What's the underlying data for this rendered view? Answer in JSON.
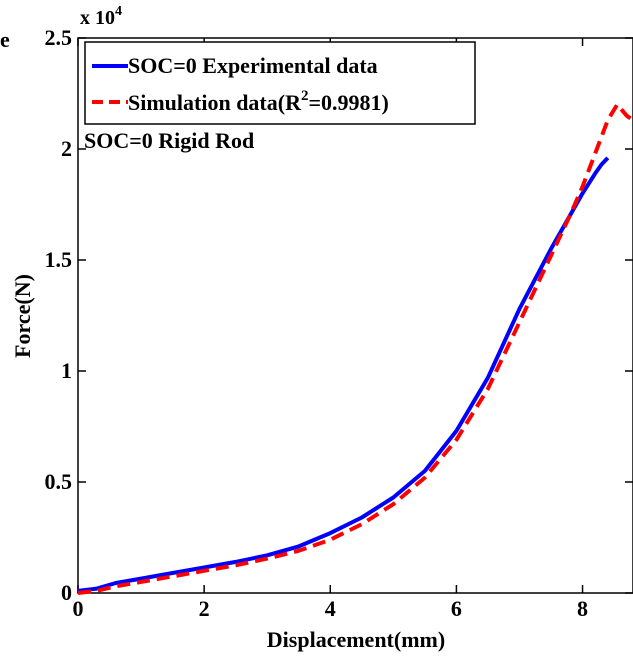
{
  "chart_data": {
    "type": "line",
    "panel_label": "e",
    "xlabel": "Displacement(mm)",
    "ylabel": "Force(N)",
    "xlim": [
      0,
      8.8
    ],
    "ylim": [
      0,
      25000
    ],
    "x_ticks": [
      0,
      2,
      4,
      6,
      8
    ],
    "x_tick_labels": [
      "0",
      "2",
      "4",
      "6",
      "8"
    ],
    "y_ticks": [
      0,
      5000,
      10000,
      15000,
      20000,
      25000
    ],
    "y_tick_labels": [
      "0",
      "0.5",
      "1",
      "1.5",
      "2",
      "2.5"
    ],
    "y_multiplier_base": "x 10",
    "y_multiplier_exp": "4",
    "annotation": "SOC=0 Rigid Rod",
    "legend_position": "top-left",
    "grid": false,
    "series": [
      {
        "name": "SOC=0 Experimental data",
        "color": "#0000ff",
        "style": "solid",
        "x": [
          0,
          0.3,
          0.6,
          1.0,
          1.5,
          2.0,
          2.5,
          3.0,
          3.5,
          4.0,
          4.5,
          5.0,
          5.5,
          6.0,
          6.5,
          7.0,
          7.5,
          7.8,
          8.0,
          8.2,
          8.3,
          8.4
        ],
        "y": [
          100,
          200,
          450,
          650,
          900,
          1150,
          1400,
          1700,
          2100,
          2700,
          3400,
          4300,
          5500,
          7300,
          9700,
          12800,
          15500,
          17000,
          18000,
          18900,
          19300,
          19600
        ]
      },
      {
        "name_main": "Simulation data(R",
        "name_sup": "2",
        "name_end": "=0.9981)",
        "color": "#ff0000",
        "style": "dashed",
        "x": [
          0,
          0.3,
          0.6,
          1.0,
          1.5,
          2.0,
          2.5,
          3.0,
          3.5,
          4.0,
          4.5,
          5.0,
          5.5,
          6.0,
          6.5,
          7.0,
          7.5,
          7.8,
          8.0,
          8.2,
          8.4,
          8.55,
          8.7,
          8.8
        ],
        "y": [
          0,
          100,
          300,
          500,
          750,
          1000,
          1250,
          1550,
          1900,
          2400,
          3100,
          4000,
          5200,
          6900,
          9200,
          12200,
          15200,
          17000,
          18300,
          19800,
          21300,
          22000,
          21500,
          21300
        ]
      }
    ]
  }
}
